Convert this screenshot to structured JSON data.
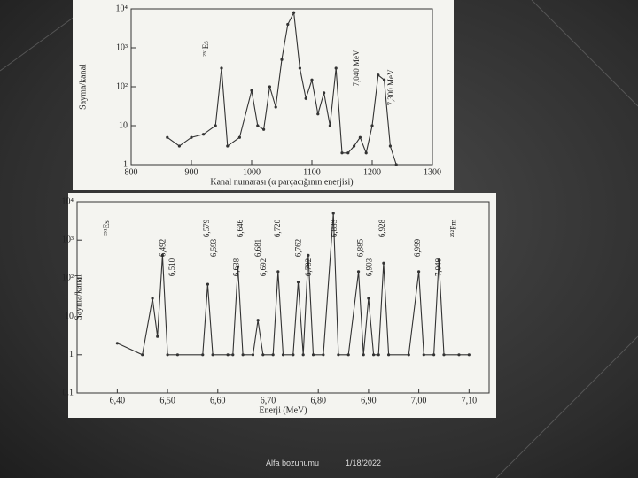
{
  "chart_data": [
    {
      "type": "line",
      "y_label": "Sayma/kanal",
      "x_label": "Kanal numarası (α parçacığının enerjisi)",
      "log_y": true,
      "color": "#333333",
      "xlim": [
        800,
        1300
      ],
      "xticks": [
        800,
        900,
        1000,
        1100,
        1200,
        1300
      ],
      "ylim": [
        1,
        10000
      ],
      "yticks": [
        1,
        10,
        {
          "value": 100,
          "label": "10²"
        },
        {
          "value": 1000,
          "label": "10³"
        },
        {
          "value": 10000,
          "label": "10⁴"
        }
      ],
      "x": [
        860,
        880,
        900,
        920,
        940,
        950,
        960,
        980,
        1000,
        1010,
        1020,
        1030,
        1040,
        1050,
        1060,
        1070,
        1080,
        1090,
        1100,
        1110,
        1120,
        1130,
        1140,
        1150,
        1160,
        1170,
        1180,
        1190,
        1200,
        1210,
        1220,
        1230,
        1240
      ],
      "values": [
        5,
        3,
        5,
        6,
        10,
        300,
        3,
        5,
        80,
        10,
        8,
        100,
        30,
        500,
        4000,
        8000,
        300,
        50,
        150,
        20,
        70,
        10,
        300,
        2,
        2,
        3,
        5,
        2,
        10,
        200,
        150,
        3,
        1
      ],
      "annotations": [
        {
          "text": "²⁵¹Es",
          "x": 925
        },
        {
          "text": "7,040 MeV",
          "x": 1175
        },
        {
          "text": "7,300 MeV",
          "x": 1232
        }
      ]
    },
    {
      "type": "line",
      "y_label": "Sayma/kanal",
      "x_label": "Enerji (MeV)",
      "log_y": true,
      "color": "#333333",
      "xlim": [
        6.32,
        7.14
      ],
      "xticks": [
        {
          "value": 6.4,
          "label": "6,40"
        },
        {
          "value": 6.5,
          "label": "6,50"
        },
        {
          "value": 6.6,
          "label": "6,60"
        },
        {
          "value": 6.7,
          "label": "6,70"
        },
        {
          "value": 6.8,
          "label": "6,80"
        },
        {
          "value": 6.9,
          "label": "6,90"
        },
        {
          "value": 7.0,
          "label": "7,00"
        },
        {
          "value": 7.1,
          "label": "7,10"
        }
      ],
      "ylim": [
        0.1,
        10000
      ],
      "yticks": [
        0.1,
        1,
        10,
        {
          "value": 100,
          "label": "10²"
        },
        {
          "value": 1000,
          "label": "10³"
        },
        {
          "value": 10000,
          "label": "10⁴"
        }
      ],
      "x": [
        6.4,
        6.45,
        6.47,
        6.48,
        6.49,
        6.5,
        6.52,
        6.57,
        6.58,
        6.59,
        6.62,
        6.63,
        6.64,
        6.65,
        6.67,
        6.68,
        6.69,
        6.71,
        6.72,
        6.73,
        6.75,
        6.76,
        6.77,
        6.78,
        6.79,
        6.81,
        6.83,
        6.84,
        6.86,
        6.88,
        6.89,
        6.9,
        6.91,
        6.92,
        6.93,
        6.94,
        6.98,
        7.0,
        7.01,
        7.03,
        7.04,
        7.05,
        7.08,
        7.1
      ],
      "values": [
        2,
        1,
        30,
        3,
        400,
        1,
        1,
        1,
        70,
        1,
        1,
        1,
        200,
        1,
        1,
        8,
        1,
        1,
        150,
        1,
        1,
        80,
        1,
        400,
        1,
        1,
        5000,
        1,
        1,
        150,
        1,
        30,
        1,
        1,
        250,
        1,
        1,
        150,
        1,
        1,
        300,
        1,
        1,
        1
      ],
      "annotations": [
        {
          "text": "²⁵¹Es",
          "x": 6.38
        },
        {
          "text": "6,492",
          "x": 6.492
        },
        {
          "text": "6,510",
          "x": 6.51
        },
        {
          "text": "6,579",
          "x": 6.579
        },
        {
          "text": "6,593",
          "x": 6.593
        },
        {
          "text": "6,638",
          "x": 6.638
        },
        {
          "text": "6,646",
          "x": 6.646
        },
        {
          "text": "6,681",
          "x": 6.681
        },
        {
          "text": "6,692",
          "x": 6.692
        },
        {
          "text": "6,720",
          "x": 6.72
        },
        {
          "text": "6,762",
          "x": 6.762
        },
        {
          "text": "6,782",
          "x": 6.782
        },
        {
          "text": "6,833",
          "x": 6.833
        },
        {
          "text": "6,885",
          "x": 6.885
        },
        {
          "text": "6,903",
          "x": 6.903
        },
        {
          "text": "6,928",
          "x": 6.928
        },
        {
          "text": "6,999",
          "x": 6.999
        },
        {
          "text": "7,040",
          "x": 7.04
        },
        {
          "text": "²⁵²Fm",
          "x": 7.07
        }
      ]
    }
  ],
  "footer": {
    "title": "Alfa bozunumu",
    "date": "1/18/2022"
  }
}
